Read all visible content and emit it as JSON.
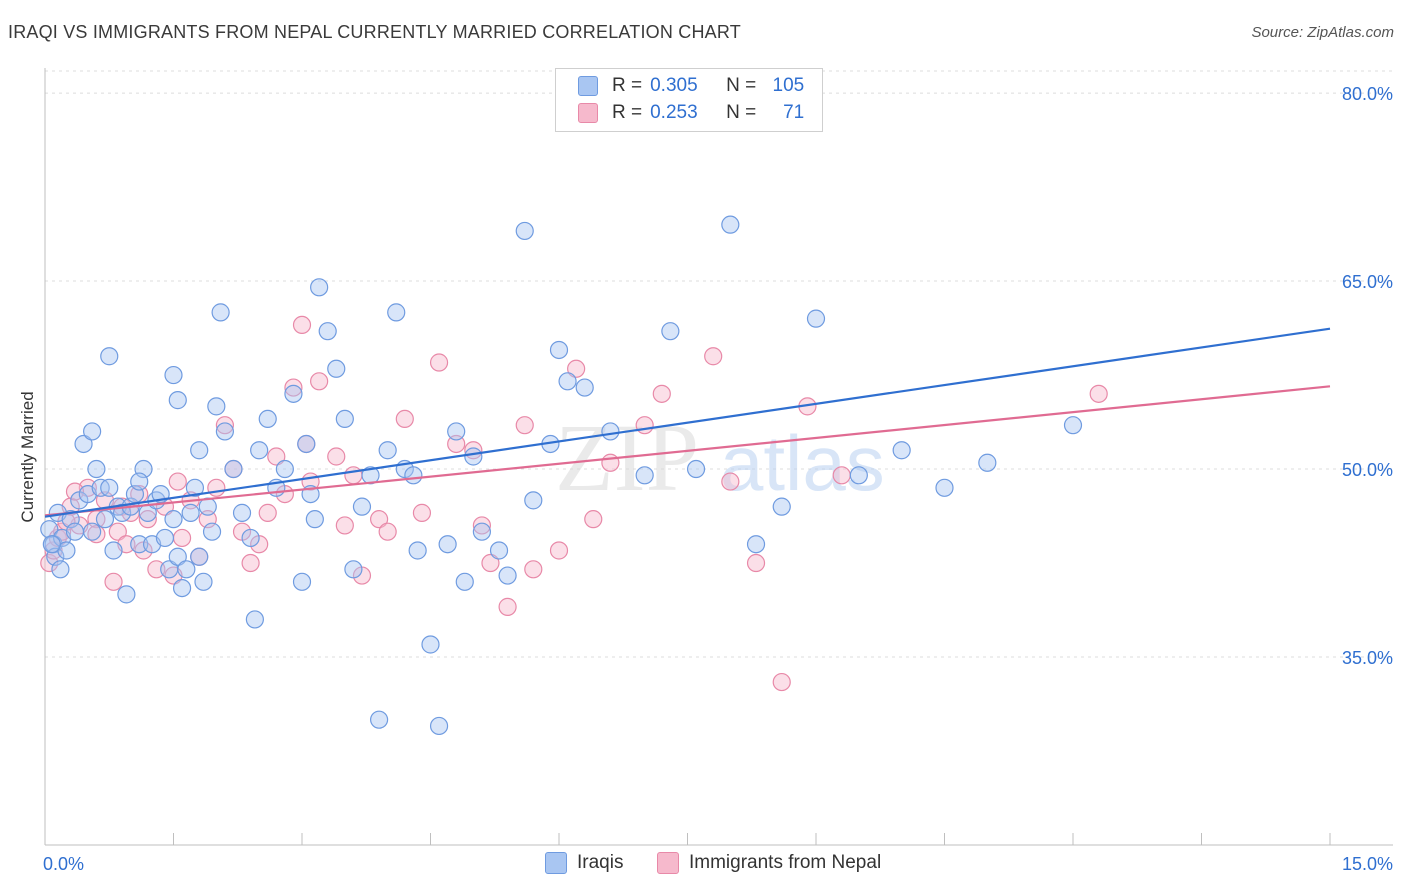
{
  "header": {
    "title": "IRAQI VS IMMIGRANTS FROM NEPAL CURRENTLY MARRIED CORRELATION CHART",
    "source": "Source: ZipAtlas.com"
  },
  "watermark": {
    "zip": "ZIP",
    "atlas": "atlas"
  },
  "legend": {
    "r_label": "R =",
    "n_label": "N =",
    "rows": [
      {
        "r": "0.305",
        "n": "105",
        "fill": "#a9c6f2",
        "stroke": "#6f9be0"
      },
      {
        "r": "0.253",
        "n": "71",
        "fill": "#f6b9cc",
        "stroke": "#e889a8"
      }
    ]
  },
  "bottom_legend": {
    "iraqis": "Iraqis",
    "nepal": "Immigrants from Nepal"
  },
  "colors": {
    "blue": "#2f6fd0",
    "pink": "#e06b92",
    "blue_fill": "#a9c6f2",
    "pink_fill": "#f6b9cc",
    "axis_label": "#2f6fd0"
  },
  "chart_data": {
    "type": "scatter",
    "title": "IRAQI VS IMMIGRANTS FROM NEPAL CURRENTLY MARRIED CORRELATION CHART",
    "xlabel": "",
    "ylabel": "Currently Married",
    "xlim": [
      0,
      15
    ],
    "ylim": [
      20,
      82
    ],
    "x_tick_labels": [
      "0.0%",
      "15.0%"
    ],
    "y_ticks": [
      35,
      50,
      65,
      80
    ],
    "y_tick_labels": [
      "35.0%",
      "50.0%",
      "65.0%",
      "80.0%"
    ],
    "grid": true,
    "series": [
      {
        "name": "Iraqis",
        "r": 0.305,
        "n": 105,
        "trend": {
          "x": [
            0,
            15
          ],
          "y": [
            46.2,
            61.2
          ]
        },
        "points": [
          [
            0.05,
            45.2
          ],
          [
            0.1,
            44.0
          ],
          [
            0.12,
            43.0
          ],
          [
            0.15,
            46.5
          ],
          [
            0.2,
            44.5
          ],
          [
            0.25,
            43.5
          ],
          [
            0.3,
            46.0
          ],
          [
            0.35,
            45.0
          ],
          [
            0.4,
            47.5
          ],
          [
            0.45,
            52.0
          ],
          [
            0.5,
            48.0
          ],
          [
            0.55,
            45.0
          ],
          [
            0.6,
            50.0
          ],
          [
            0.65,
            48.5
          ],
          [
            0.7,
            46.0
          ],
          [
            0.75,
            48.5
          ],
          [
            0.8,
            43.5
          ],
          [
            0.85,
            47.0
          ],
          [
            0.9,
            46.5
          ],
          [
            0.95,
            40.0
          ],
          [
            1.0,
            47.0
          ],
          [
            1.05,
            48.0
          ],
          [
            1.1,
            44.0
          ],
          [
            1.15,
            50.0
          ],
          [
            1.2,
            46.5
          ],
          [
            1.25,
            44.0
          ],
          [
            1.3,
            47.5
          ],
          [
            1.35,
            48.0
          ],
          [
            1.4,
            44.5
          ],
          [
            1.45,
            42.0
          ],
          [
            1.5,
            46.0
          ],
          [
            1.55,
            43.0
          ],
          [
            1.6,
            40.5
          ],
          [
            1.65,
            42.0
          ],
          [
            1.7,
            46.5
          ],
          [
            1.75,
            48.5
          ],
          [
            1.8,
            43.0
          ],
          [
            1.85,
            41.0
          ],
          [
            1.9,
            47.0
          ],
          [
            1.95,
            45.0
          ],
          [
            1.5,
            57.5
          ],
          [
            1.55,
            55.5
          ],
          [
            1.8,
            51.5
          ],
          [
            0.75,
            59.0
          ],
          [
            2.0,
            55.0
          ],
          [
            2.05,
            62.5
          ],
          [
            2.1,
            53.0
          ],
          [
            2.2,
            50.0
          ],
          [
            2.3,
            46.5
          ],
          [
            2.4,
            44.5
          ],
          [
            2.45,
            38.0
          ],
          [
            2.5,
            51.5
          ],
          [
            2.6,
            54.0
          ],
          [
            2.7,
            48.5
          ],
          [
            2.8,
            50.0
          ],
          [
            2.9,
            56.0
          ],
          [
            3.0,
            41.0
          ],
          [
            3.05,
            52.0
          ],
          [
            3.1,
            48.0
          ],
          [
            3.15,
            46.0
          ],
          [
            3.2,
            64.5
          ],
          [
            3.3,
            61.0
          ],
          [
            3.4,
            58.0
          ],
          [
            3.5,
            54.0
          ],
          [
            3.6,
            42.0
          ],
          [
            3.7,
            47.0
          ],
          [
            3.8,
            49.5
          ],
          [
            3.9,
            30.0
          ],
          [
            4.0,
            51.5
          ],
          [
            4.1,
            62.5
          ],
          [
            4.2,
            50.0
          ],
          [
            4.3,
            49.5
          ],
          [
            4.35,
            43.5
          ],
          [
            4.5,
            36.0
          ],
          [
            4.6,
            29.5
          ],
          [
            4.7,
            44.0
          ],
          [
            4.8,
            53.0
          ],
          [
            4.9,
            41.0
          ],
          [
            5.0,
            51.0
          ],
          [
            5.1,
            45.0
          ],
          [
            5.3,
            43.5
          ],
          [
            5.4,
            41.5
          ],
          [
            5.6,
            69.0
          ],
          [
            5.7,
            47.5
          ],
          [
            5.9,
            52.0
          ],
          [
            6.0,
            59.5
          ],
          [
            6.1,
            57.0
          ],
          [
            6.3,
            56.5
          ],
          [
            6.6,
            53.0
          ],
          [
            7.0,
            49.5
          ],
          [
            7.3,
            61.0
          ],
          [
            7.6,
            50.0
          ],
          [
            8.0,
            69.5
          ],
          [
            8.3,
            44.0
          ],
          [
            8.6,
            47.0
          ],
          [
            9.0,
            62.0
          ],
          [
            9.5,
            49.5
          ],
          [
            10.0,
            51.5
          ],
          [
            10.5,
            48.5
          ],
          [
            11.0,
            50.5
          ],
          [
            12.0,
            53.5
          ],
          [
            0.08,
            44.0
          ],
          [
            0.18,
            42.0
          ],
          [
            1.1,
            49.0
          ],
          [
            0.55,
            53.0
          ]
        ]
      },
      {
        "name": "Immigrants from Nepal",
        "r": 0.253,
        "n": 71,
        "trend": {
          "x": [
            0,
            15
          ],
          "y": [
            46.3,
            56.6
          ]
        },
        "points": [
          [
            0.05,
            42.5
          ],
          [
            0.1,
            43.5
          ],
          [
            0.15,
            44.5
          ],
          [
            0.2,
            45.0
          ],
          [
            0.3,
            47.0
          ],
          [
            0.4,
            45.5
          ],
          [
            0.5,
            48.5
          ],
          [
            0.6,
            46.0
          ],
          [
            0.7,
            47.5
          ],
          [
            0.8,
            41.0
          ],
          [
            0.85,
            45.0
          ],
          [
            0.9,
            47.0
          ],
          [
            0.95,
            44.0
          ],
          [
            1.0,
            46.5
          ],
          [
            1.1,
            48.0
          ],
          [
            1.15,
            43.5
          ],
          [
            1.2,
            46.0
          ],
          [
            1.3,
            42.0
          ],
          [
            1.4,
            47.0
          ],
          [
            1.5,
            41.5
          ],
          [
            1.55,
            49.0
          ],
          [
            1.6,
            44.5
          ],
          [
            1.7,
            47.5
          ],
          [
            1.8,
            43.0
          ],
          [
            1.9,
            46.0
          ],
          [
            2.0,
            48.5
          ],
          [
            2.1,
            53.5
          ],
          [
            2.2,
            50.0
          ],
          [
            2.3,
            45.0
          ],
          [
            2.4,
            42.5
          ],
          [
            2.5,
            44.0
          ],
          [
            2.6,
            46.5
          ],
          [
            2.7,
            51.0
          ],
          [
            2.8,
            48.0
          ],
          [
            2.9,
            56.5
          ],
          [
            3.0,
            61.5
          ],
          [
            3.05,
            52.0
          ],
          [
            3.1,
            49.0
          ],
          [
            3.2,
            57.0
          ],
          [
            3.4,
            51.0
          ],
          [
            3.5,
            45.5
          ],
          [
            3.6,
            49.5
          ],
          [
            3.7,
            41.5
          ],
          [
            3.9,
            46.0
          ],
          [
            4.0,
            45.0
          ],
          [
            4.2,
            54.0
          ],
          [
            4.4,
            46.5
          ],
          [
            4.6,
            58.5
          ],
          [
            4.8,
            52.0
          ],
          [
            5.0,
            51.5
          ],
          [
            5.1,
            45.5
          ],
          [
            5.2,
            42.5
          ],
          [
            5.4,
            39.0
          ],
          [
            5.6,
            53.5
          ],
          [
            5.7,
            42.0
          ],
          [
            6.0,
            43.5
          ],
          [
            6.2,
            58.0
          ],
          [
            6.4,
            46.0
          ],
          [
            6.6,
            50.5
          ],
          [
            7.0,
            53.5
          ],
          [
            7.2,
            56.0
          ],
          [
            7.8,
            59.0
          ],
          [
            8.0,
            49.0
          ],
          [
            8.3,
            42.5
          ],
          [
            8.6,
            33.0
          ],
          [
            8.9,
            55.0
          ],
          [
            9.3,
            49.5
          ],
          [
            12.3,
            56.0
          ],
          [
            0.25,
            45.8
          ],
          [
            0.35,
            48.2
          ],
          [
            0.6,
            44.8
          ]
        ]
      }
    ]
  }
}
